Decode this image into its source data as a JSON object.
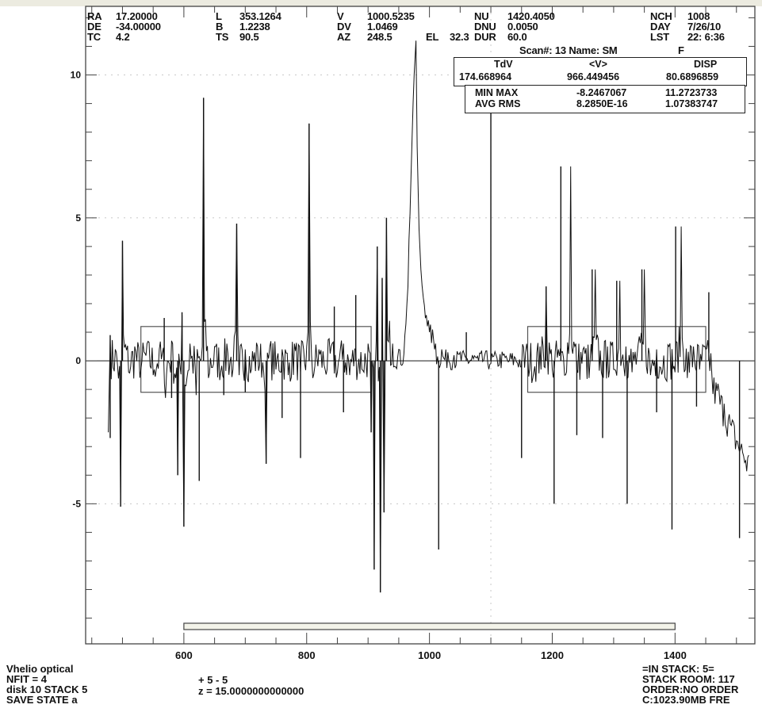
{
  "header": {
    "RA_label": "RA",
    "RA": "17.20000",
    "DE_label": "DE",
    "DE": "-34.00000",
    "TC_label": "TC",
    "TC": "4.2",
    "L_label": "L",
    "L": "353.1264",
    "B_label": "B",
    "B": "1.2238",
    "TS_label": "TS",
    "TS": "90.5",
    "V_label": "V",
    "V": "1000.5235",
    "DV_label": "DV",
    "DV": "1.0469",
    "AZ_label": "AZ",
    "AZ": "248.5",
    "EL_label": "EL",
    "EL": "32.3",
    "NU_label": "NU",
    "NU": "1420.4050",
    "DNU_label": "DNU",
    "DNU": "0.0050",
    "DUR_label": "DUR",
    "DUR": "60.0",
    "NCH_label": "NCH",
    "NCH": "1008",
    "DAY_label": "DAY",
    "DAY": "7/26/10",
    "LST_label": "LST",
    "LST": "22: 6:36",
    "scan_line": "Scan#: 13 Name: SM",
    "scan_flag": "F"
  },
  "stats": {
    "h1": "TdV",
    "h2": "<V>",
    "h3": "DISP",
    "v1": "174.668964",
    "v2": "966.449456",
    "v3": "80.6896859",
    "minmax_label": "MIN  MAX",
    "min": "-8.2467067",
    "max": "11.2723733",
    "avgrms_label": "AVG  RMS",
    "avg": "8.2850E-16",
    "rms": "1.07383747"
  },
  "footer": {
    "left": [
      "Vhelio optical",
      "NFIT = 4",
      "disk 10 STACK 5",
      "SAVE STATE a"
    ],
    "mid": [
      "+  5 -  5",
      "z = 15.0000000000000"
    ],
    "right": [
      "=IN STACK:   5=",
      "STACK ROOM: 117",
      "ORDER:NO ORDER",
      "C:1023.90MB FRE"
    ]
  },
  "chart_data": {
    "type": "line",
    "title": "",
    "xlabel": "",
    "ylabel": "",
    "xlim": [
      440,
      1530
    ],
    "ylim": [
      -9.9,
      12.4
    ],
    "xticks": [
      600,
      800,
      1000,
      1200,
      1400
    ],
    "yticks": [
      -5,
      0,
      5,
      10
    ],
    "baseline_y": 0,
    "baseline_regions": [
      [
        530,
        905
      ],
      [
        1160,
        1450
      ]
    ],
    "baseline_box_y": [
      -1.1,
      1.2
    ],
    "range_bar_x": [
      600,
      1400
    ],
    "series": [
      {
        "x": [
          477,
          480,
          490,
          497,
          500,
          510,
          520,
          530,
          540,
          550,
          560,
          570,
          580,
          590,
          597,
          600,
          610,
          620,
          630,
          632,
          640,
          650,
          660,
          670,
          680,
          686,
          690,
          700,
          710,
          720,
          730,
          734,
          740,
          750,
          760,
          770,
          780,
          790,
          800,
          804,
          810,
          820,
          830,
          840,
          850,
          860,
          870,
          880,
          890,
          900,
          905,
          910,
          915,
          920,
          923,
          926,
          930,
          935,
          940,
          950,
          960,
          965,
          970,
          975,
          978,
          980,
          983,
          986,
          990,
          995,
          1000,
          1010,
          1020,
          1030,
          1040,
          1050,
          1060,
          1070,
          1080,
          1090,
          1100,
          1110,
          1120,
          1130,
          1140,
          1150,
          1160,
          1170,
          1180,
          1190,
          1200,
          1210,
          1220,
          1230,
          1240,
          1250,
          1260,
          1270,
          1280,
          1290,
          1300,
          1310,
          1320,
          1330,
          1340,
          1350,
          1360,
          1370,
          1380,
          1390,
          1400,
          1410,
          1420,
          1430,
          1440,
          1450,
          1460,
          1470,
          1480,
          1490,
          1500,
          1510,
          1520
        ],
        "y": [
          -2.5,
          0.8,
          0.3,
          -5.1,
          4.2,
          -0.4,
          0.5,
          -0.3,
          0.6,
          -0.5,
          0.4,
          -1.3,
          0.7,
          -4.0,
          1.6,
          -5.8,
          0.6,
          -1.2,
          0.5,
          9.2,
          -0.6,
          0.5,
          -0.4,
          0.6,
          -0.3,
          4.8,
          -0.5,
          0.4,
          -0.3,
          0.5,
          -0.4,
          -3.6,
          0.5,
          -0.3,
          0.4,
          -0.5,
          0.6,
          -0.4,
          0.5,
          8.3,
          -0.6,
          0.4,
          -0.3,
          0.5,
          -0.4,
          0.6,
          -0.5,
          0.4,
          -0.3,
          0.6,
          -2.5,
          -7.3,
          4.0,
          -8.1,
          2.9,
          -5.3,
          5.0,
          1.4,
          0.6,
          0.4,
          0.9,
          2.6,
          6.5,
          10.0,
          11.2,
          7.5,
          4.6,
          3.2,
          2.2,
          1.6,
          1.0,
          0.6,
          0.4,
          0.3,
          0.2,
          0.3,
          0.1,
          0.2,
          0.0,
          0.2,
          -0.1,
          0.1,
          0.2,
          0.0,
          0.1,
          -0.2,
          0.3,
          -0.4,
          0.5,
          2.6,
          -0.3,
          0.4,
          -0.5,
          6.8,
          -0.3,
          0.4,
          -0.6,
          3.2,
          -0.4,
          0.5,
          -0.3,
          2.8,
          0.5,
          -0.4,
          0.6,
          3.2,
          -0.5,
          0.4,
          -0.3,
          0.5,
          -0.4,
          4.7,
          -0.6,
          0.5,
          -0.3,
          0.4,
          -0.5,
          -0.8,
          -1.5,
          -2.2,
          -2.8,
          -3.2,
          -3.3
        ]
      }
    ],
    "spikes": [
      [
        480,
        -2.7
      ],
      [
        480,
        0.9
      ],
      [
        497,
        -5.1
      ],
      [
        500,
        4.2
      ],
      [
        568,
        1.5
      ],
      [
        580,
        -1.3
      ],
      [
        590,
        -4.0
      ],
      [
        597,
        1.7
      ],
      [
        600,
        -5.8
      ],
      [
        625,
        -4.2
      ],
      [
        632,
        9.2
      ],
      [
        665,
        -1.2
      ],
      [
        686,
        4.8
      ],
      [
        700,
        -1.1
      ],
      [
        734,
        -3.6
      ],
      [
        760,
        -2.0
      ],
      [
        790,
        -3.4
      ],
      [
        804,
        8.3
      ],
      [
        845,
        1.9
      ],
      [
        860,
        -1.8
      ],
      [
        880,
        2.3
      ],
      [
        905,
        -2.5
      ],
      [
        910,
        -7.3
      ],
      [
        915,
        4.0
      ],
      [
        920,
        -8.1
      ],
      [
        923,
        2.9
      ],
      [
        926,
        -5.3
      ],
      [
        930,
        5.0
      ],
      [
        1015,
        -6.6
      ],
      [
        1060,
        1.0
      ],
      [
        1100,
        10.0
      ],
      [
        1150,
        -3.4
      ],
      [
        1190,
        2.6
      ],
      [
        1203,
        -5.0
      ],
      [
        1214,
        6.8
      ],
      [
        1240,
        -2.6
      ],
      [
        1265,
        3.2
      ],
      [
        1282,
        -2.7
      ],
      [
        1305,
        2.8
      ],
      [
        1322,
        -5.0
      ],
      [
        1346,
        3.2
      ],
      [
        1370,
        -1.8
      ],
      [
        1395,
        -5.9
      ],
      [
        1401,
        4.7
      ],
      [
        1435,
        -1.6
      ],
      [
        1455,
        2.4
      ],
      [
        1505,
        -6.2
      ]
    ]
  }
}
